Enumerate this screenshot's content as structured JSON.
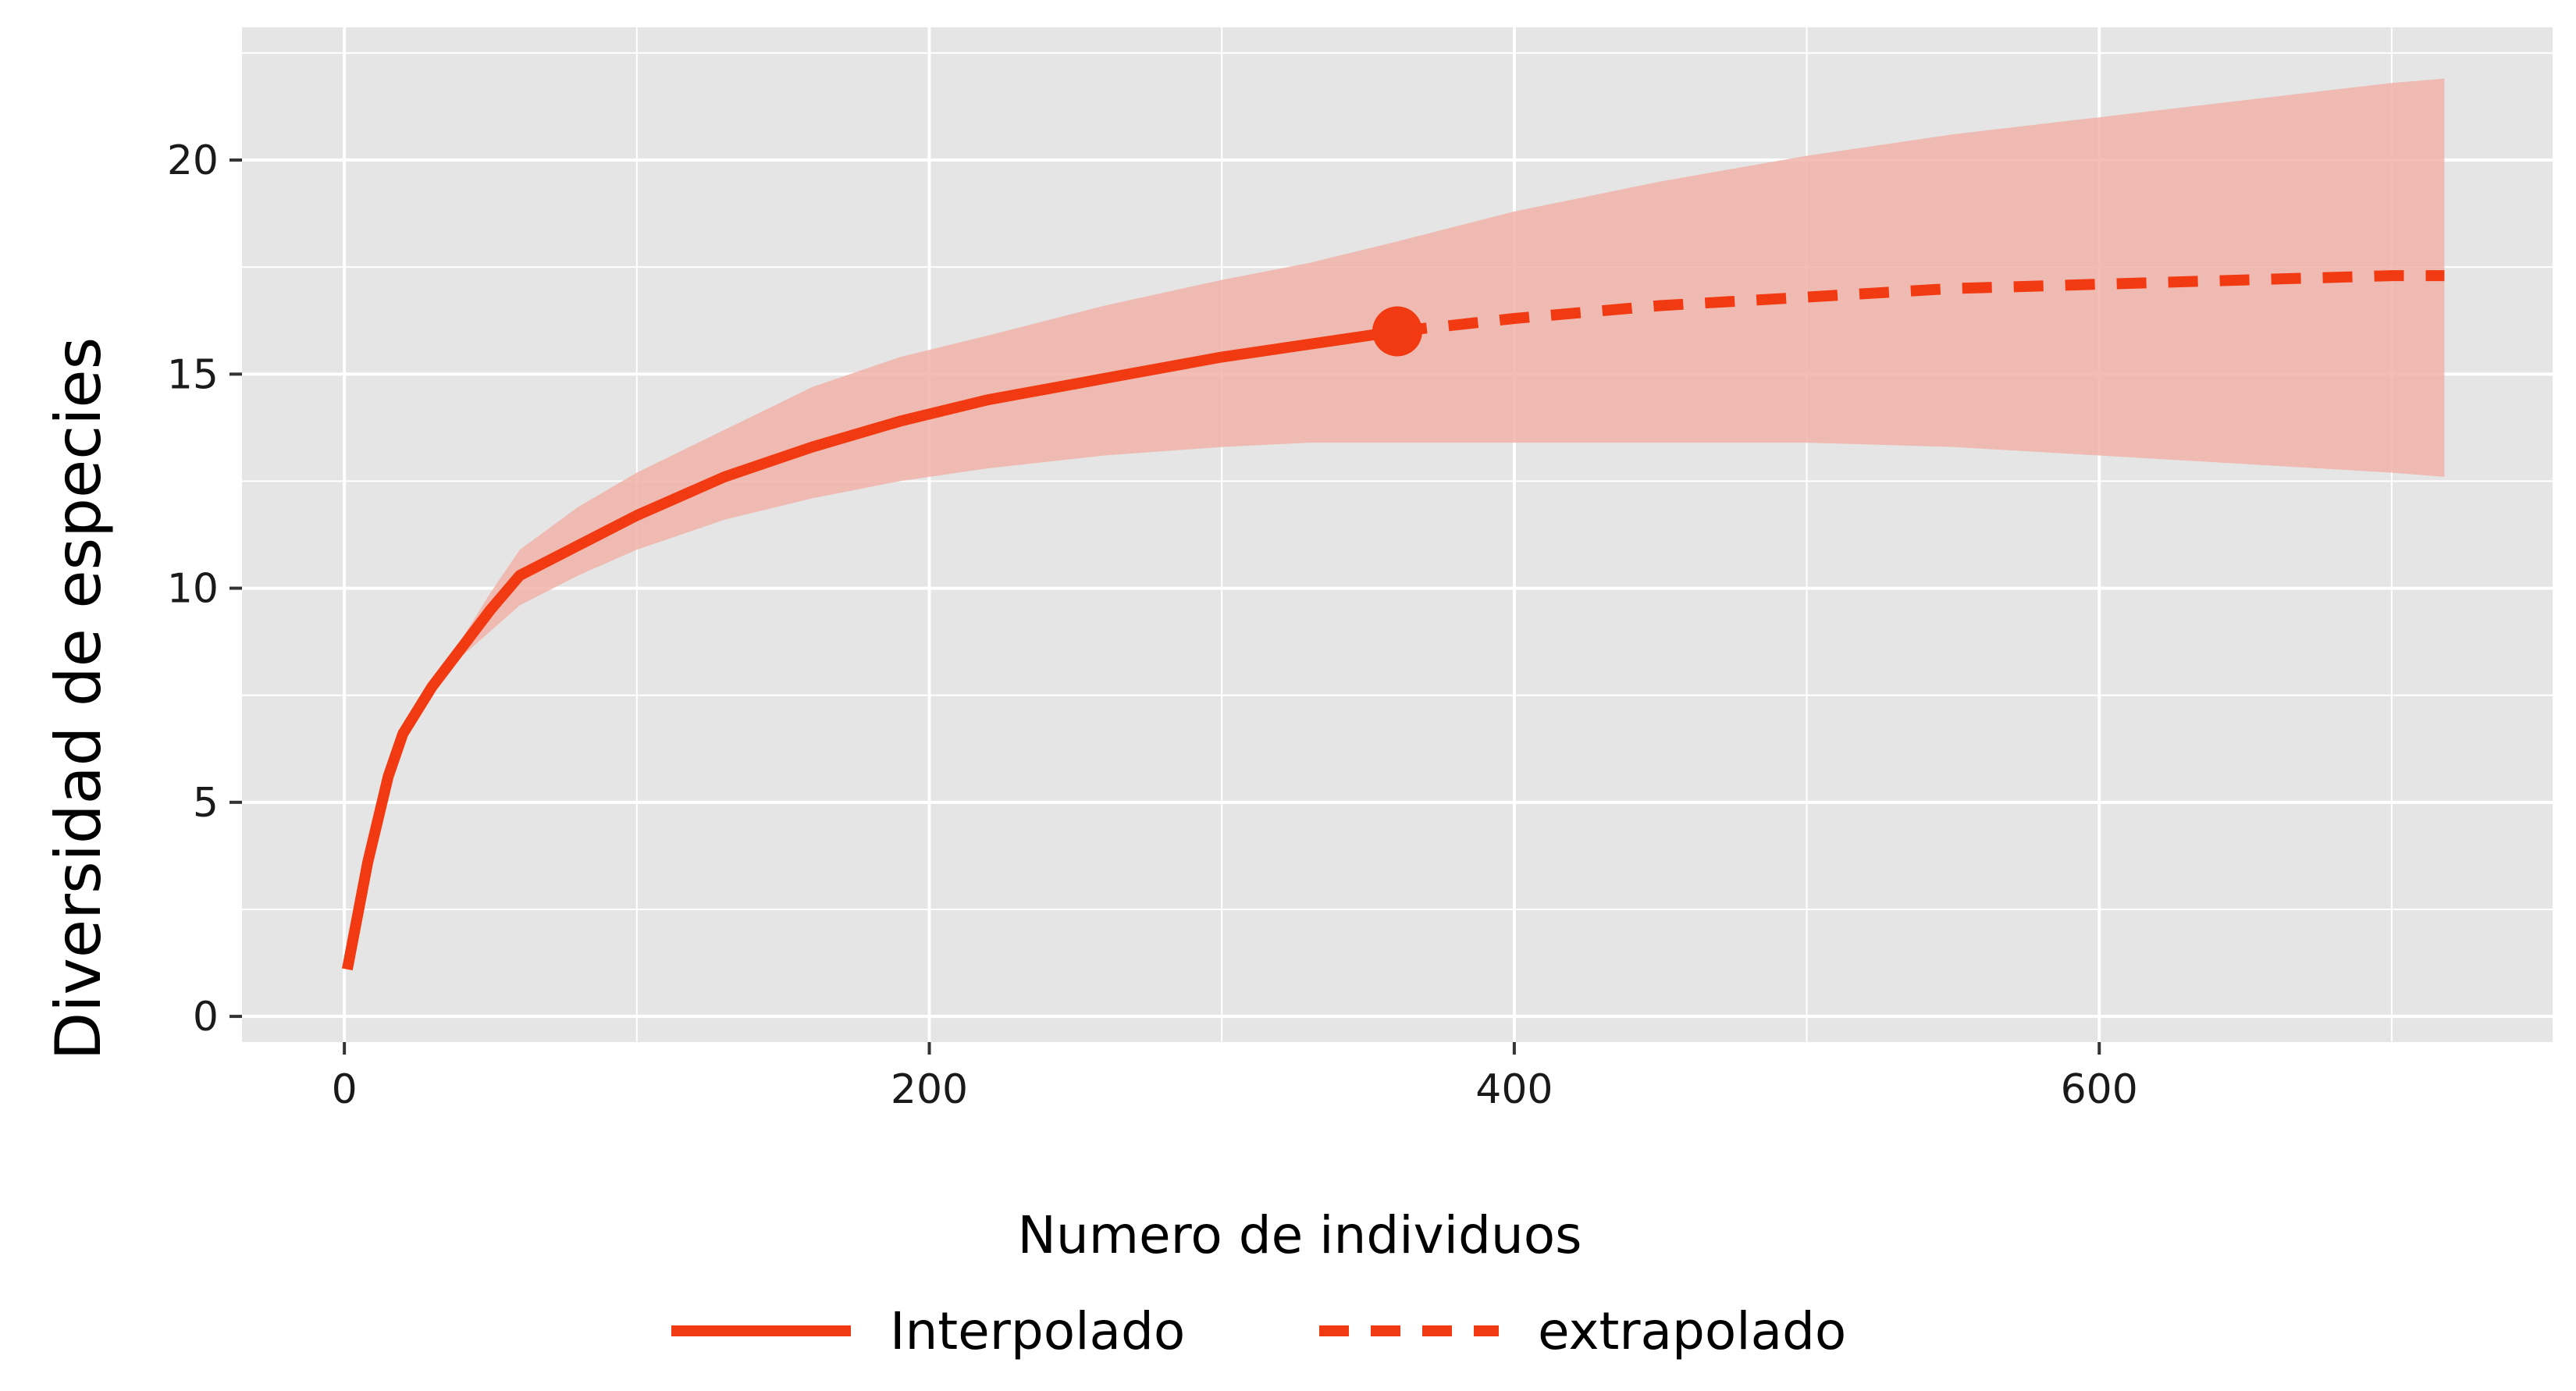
{
  "chart_data": {
    "type": "line",
    "xlabel": "Numero de individuos",
    "ylabel": "Diversidad de especies",
    "xlim": [
      -35,
      755
    ],
    "ylim": [
      -0.6,
      23.1
    ],
    "x_ticks": [
      0,
      200,
      400,
      600
    ],
    "y_ticks": [
      0,
      5,
      10,
      15,
      20
    ],
    "x_tick_labels": [
      "0",
      "200",
      "400",
      "600"
    ],
    "y_tick_labels": [
      "0",
      "5",
      "10",
      "15",
      "20"
    ],
    "grid": true,
    "legend_position": "bottom",
    "colors": {
      "line": "#f23a12",
      "ribbon": "#f0b3a8",
      "panel": "#e5e5e5",
      "grid": "#ffffff"
    },
    "series": [
      {
        "name": "Interpolado",
        "linetype": "solid",
        "x": [
          1,
          8,
          15,
          20,
          30,
          40,
          50,
          60,
          80,
          100,
          130,
          160,
          190,
          220,
          260,
          300,
          330,
          360
        ],
        "y": [
          1.1,
          3.6,
          5.6,
          6.6,
          7.7,
          8.6,
          9.5,
          10.3,
          11.0,
          11.7,
          12.6,
          13.3,
          13.9,
          14.4,
          14.9,
          15.4,
          15.7,
          16.0
        ],
        "lower": [
          1.1,
          3.6,
          5.6,
          6.6,
          7.6,
          8.4,
          9.0,
          9.6,
          10.3,
          10.9,
          11.6,
          12.1,
          12.5,
          12.8,
          13.1,
          13.3,
          13.4,
          13.4
        ],
        "upper": [
          1.1,
          3.6,
          5.6,
          6.6,
          7.8,
          8.8,
          9.9,
          10.9,
          11.9,
          12.7,
          13.7,
          14.7,
          15.4,
          15.9,
          16.6,
          17.2,
          17.6,
          18.1
        ]
      },
      {
        "name": "extrapolado",
        "linetype": "dashed",
        "x": [
          360,
          400,
          450,
          500,
          550,
          600,
          650,
          700,
          718
        ],
        "y": [
          16.0,
          16.3,
          16.6,
          16.8,
          17.0,
          17.1,
          17.2,
          17.3,
          17.3
        ],
        "lower": [
          13.4,
          13.4,
          13.4,
          13.4,
          13.3,
          13.1,
          12.9,
          12.7,
          12.6
        ],
        "upper": [
          18.1,
          18.8,
          19.5,
          20.1,
          20.6,
          21.0,
          21.4,
          21.8,
          21.9
        ]
      }
    ],
    "observed_point": {
      "x": 360,
      "y": 16.0
    }
  }
}
